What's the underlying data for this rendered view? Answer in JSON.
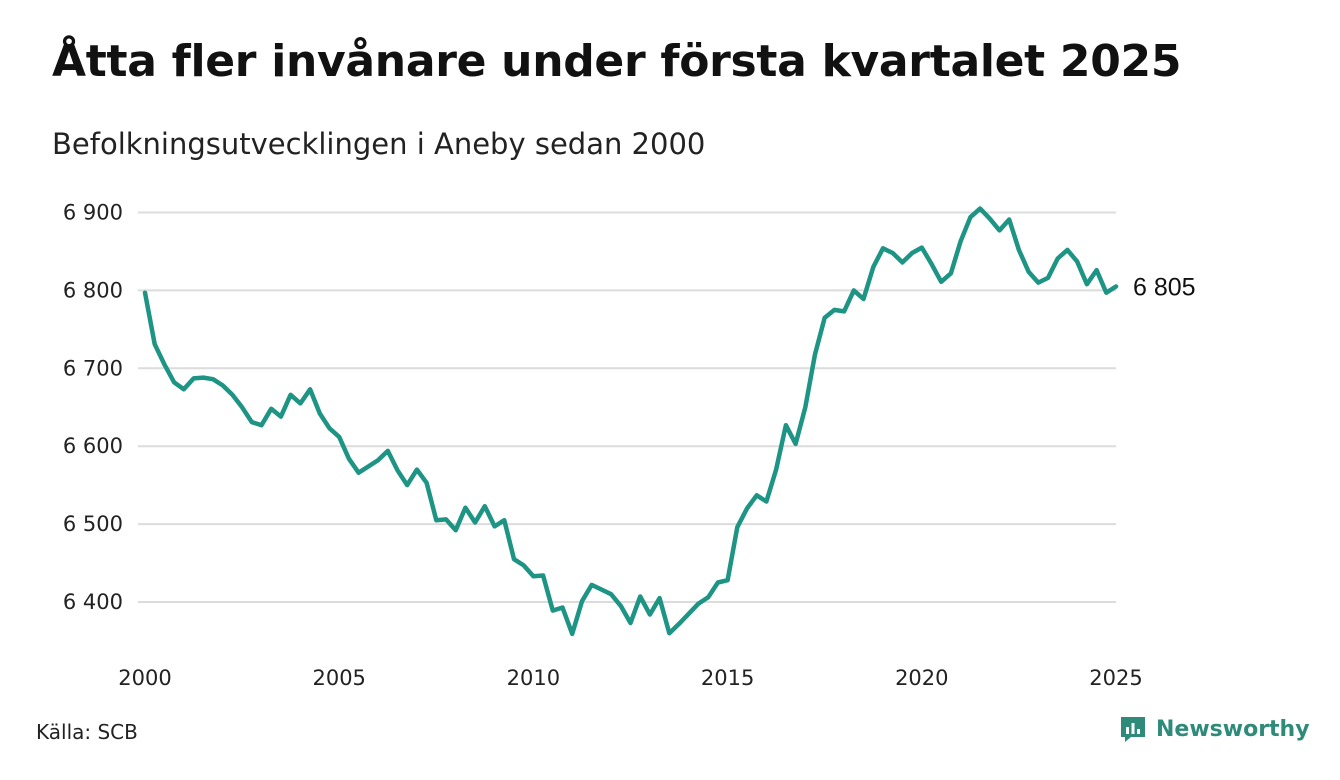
{
  "header": {
    "title": "Åtta fler invånare under första kvartalet 2025",
    "subtitle": "Befolkningsutvecklingen i Aneby sedan 2000"
  },
  "footer": {
    "source": "Källa: SCB",
    "brand": "Newsworthy"
  },
  "colors": {
    "line": "#1e9484",
    "grid": "#dcdcdc",
    "brand": "#2e8b7a"
  },
  "chart_data": {
    "type": "line",
    "title": "Åtta fler invånare under första kvartalet 2025",
    "subtitle": "Befolkningsutvecklingen i Aneby sedan 2000",
    "xlabel": "",
    "ylabel": "",
    "xlim": [
      2000,
      2025
    ],
    "ylim": [
      6340,
      6910
    ],
    "x_ticks": [
      2000,
      2005,
      2010,
      2015,
      2020,
      2025
    ],
    "x_tick_labels": [
      "2000",
      "2005",
      "2010",
      "2015",
      "2020",
      "2025"
    ],
    "y_ticks": [
      6400,
      6500,
      6600,
      6700,
      6800,
      6900
    ],
    "y_tick_labels": [
      "6 400",
      "6 500",
      "6 600",
      "6 700",
      "6 800",
      "6 900"
    ],
    "grid": "horizontal",
    "end_label": "6 805",
    "series": [
      {
        "x": [
          2000.0,
          2000.25,
          2000.5,
          2000.75,
          2001.0,
          2001.25,
          2001.5,
          2001.75,
          2002.0,
          2002.25,
          2002.5,
          2002.75,
          2003.0,
          2003.25,
          2003.5,
          2003.75,
          2004.0,
          2004.25,
          2004.5,
          2004.75,
          2005.0,
          2005.25,
          2005.5,
          2005.75,
          2006.0,
          2006.25,
          2006.5,
          2006.75,
          2007.0,
          2007.25,
          2007.5,
          2007.75,
          2008.0,
          2008.25,
          2008.5,
          2008.75,
          2009.0,
          2009.25,
          2009.5,
          2009.75,
          2010.0,
          2010.25,
          2010.5,
          2010.75,
          2011.0,
          2011.25,
          2011.5,
          2011.75,
          2012.0,
          2012.25,
          2012.5,
          2012.75,
          2013.0,
          2013.25,
          2013.5,
          2013.75,
          2014.0,
          2014.25,
          2014.5,
          2014.75,
          2015.0,
          2015.25,
          2015.5,
          2015.75,
          2016.0,
          2016.25,
          2016.5,
          2016.75,
          2017.0,
          2017.25,
          2017.5,
          2017.75,
          2018.0,
          2018.25,
          2018.5,
          2018.75,
          2019.0,
          2019.25,
          2019.5,
          2019.75,
          2020.0,
          2020.25,
          2020.5,
          2020.75,
          2021.0,
          2021.25,
          2021.5,
          2021.75,
          2022.0,
          2022.25,
          2022.5,
          2022.75,
          2023.0,
          2023.25,
          2023.5,
          2023.75,
          2024.0,
          2024.25,
          2024.5,
          2024.75,
          2025.0
        ],
        "y": [
          6797,
          6731,
          6705,
          6682,
          6673,
          6687,
          6688,
          6686,
          6678,
          6666,
          6650,
          6631,
          6627,
          6648,
          6638,
          6666,
          6655,
          6673,
          6642,
          6623,
          6612,
          6584,
          6566,
          6574,
          6582,
          6594,
          6569,
          6550,
          6570,
          6553,
          6505,
          6506,
          6492,
          6521,
          6502,
          6523,
          6497,
          6505,
          6455,
          6447,
          6433,
          6434,
          6389,
          6393,
          6359,
          6401,
          6422,
          6416,
          6410,
          6395,
          6373,
          6407,
          6384,
          6405,
          6360,
          6372,
          6385,
          6398,
          6406,
          6425,
          6428,
          6496,
          6520,
          6537,
          6529,
          6570,
          6627,
          6603,
          6650,
          6718,
          6765,
          6775,
          6773,
          6800,
          6789,
          6830,
          6854,
          6848,
          6836,
          6848,
          6855,
          6834,
          6811,
          6822,
          6863,
          6894,
          6905,
          6892,
          6877,
          6891,
          6852,
          6824,
          6810,
          6816,
          6841,
          6852,
          6837,
          6808,
          6826,
          6797,
          6805
        ]
      }
    ]
  }
}
